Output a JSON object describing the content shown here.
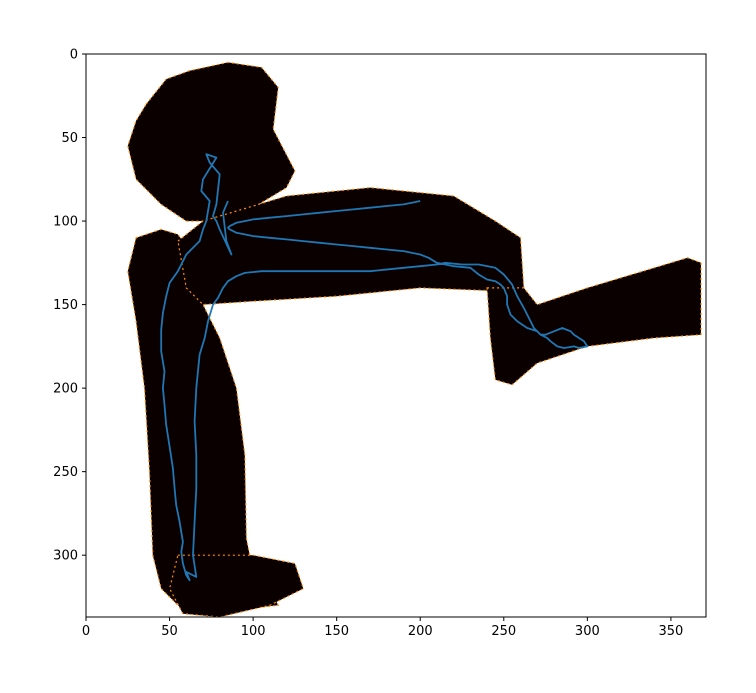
{
  "chart_data": {
    "type": "heatmap",
    "title": "",
    "xlabel": "",
    "ylabel": "",
    "xlim": [
      0,
      371
    ],
    "ylim": [
      337,
      0
    ],
    "y_axis_inverted": true,
    "x_ticks": [
      0,
      50,
      100,
      150,
      200,
      250,
      300,
      350
    ],
    "y_ticks": [
      0,
      50,
      100,
      150,
      200,
      250,
      300
    ],
    "grid": false,
    "legend": "none",
    "colors": {
      "occupied": "#0b0000",
      "edge": "#ff8c00",
      "free": "#ffffff",
      "trajectory": "#1f77b4"
    },
    "map_regions": [
      {
        "name": "top blob",
        "polygon": [
          [
            36,
            30
          ],
          [
            48,
            15
          ],
          [
            62,
            10
          ],
          [
            85,
            5
          ],
          [
            105,
            8
          ],
          [
            115,
            20
          ],
          [
            112,
            45
          ],
          [
            125,
            70
          ],
          [
            120,
            80
          ],
          [
            95,
            95
          ],
          [
            75,
            100
          ],
          [
            60,
            100
          ],
          [
            45,
            90
          ],
          [
            30,
            75
          ],
          [
            25,
            55
          ],
          [
            30,
            40
          ]
        ]
      },
      {
        "name": "left vertical strip",
        "polygon": [
          [
            30,
            110
          ],
          [
            45,
            105
          ],
          [
            55,
            108
          ],
          [
            60,
            115
          ],
          [
            70,
            150
          ],
          [
            80,
            170
          ],
          [
            90,
            200
          ],
          [
            95,
            240
          ],
          [
            96,
            290
          ],
          [
            100,
            310
          ],
          [
            110,
            320
          ],
          [
            115,
            330
          ],
          [
            70,
            335
          ],
          [
            55,
            330
          ],
          [
            45,
            320
          ],
          [
            40,
            300
          ],
          [
            38,
            250
          ],
          [
            35,
            200
          ],
          [
            30,
            160
          ],
          [
            25,
            130
          ]
        ]
      },
      {
        "name": "horizontal corridor",
        "polygon": [
          [
            55,
            112
          ],
          [
            70,
            100
          ],
          [
            120,
            85
          ],
          [
            170,
            80
          ],
          [
            220,
            85
          ],
          [
            245,
            100
          ],
          [
            260,
            110
          ],
          [
            262,
            140
          ],
          [
            250,
            142
          ],
          [
            200,
            140
          ],
          [
            150,
            145
          ],
          [
            100,
            148
          ],
          [
            70,
            150
          ],
          [
            60,
            140
          ]
        ]
      },
      {
        "name": "right corridor",
        "polygon": [
          [
            240,
            140
          ],
          [
            262,
            140
          ],
          [
            270,
            150
          ],
          [
            300,
            140
          ],
          [
            360,
            122
          ],
          [
            368,
            125
          ],
          [
            368,
            168
          ],
          [
            340,
            170
          ],
          [
            300,
            175
          ],
          [
            270,
            185
          ],
          [
            255,
            198
          ],
          [
            245,
            195
          ],
          [
            242,
            170
          ]
        ]
      },
      {
        "name": "bottom foot",
        "polygon": [
          [
            55,
            300
          ],
          [
            100,
            300
          ],
          [
            125,
            305
          ],
          [
            130,
            320
          ],
          [
            110,
            330
          ],
          [
            80,
            337
          ],
          [
            58,
            335
          ],
          [
            50,
            320
          ]
        ]
      }
    ],
    "series": [
      {
        "type": "line",
        "x": [
          85,
          82,
          84,
          87,
          80,
          78,
          76,
          78,
          80,
          74,
          72,
          78,
          70,
          69,
          74,
          72,
          70,
          68,
          65,
          60,
          55,
          50,
          48,
          46,
          45,
          45,
          47,
          46,
          47,
          48,
          50,
          52,
          53,
          54,
          56,
          58,
          57,
          58,
          60,
          62,
          60,
          66,
          64,
          65,
          66,
          66,
          65,
          66,
          68,
          71,
          73,
          76,
          79,
          82,
          85,
          90,
          95,
          105,
          115,
          130,
          150,
          170,
          190,
          200,
          210,
          215,
          225,
          235,
          245,
          250,
          255,
          258,
          262,
          265,
          268,
          272,
          275,
          280,
          285,
          290,
          292,
          295,
          298,
          300,
          295,
          292,
          286,
          282,
          278,
          276,
          272,
          270,
          264,
          258,
          254,
          252,
          252,
          250,
          248,
          245,
          240,
          235,
          230,
          220,
          210,
          205,
          200,
          190,
          180,
          170,
          160,
          150,
          140,
          130,
          120,
          110,
          100,
          95,
          90,
          88,
          86,
          85,
          86,
          88,
          90,
          95,
          100,
          110,
          120,
          130,
          140,
          150,
          160,
          170,
          180,
          190,
          195,
          200
        ],
        "y": [
          88,
          95,
          112,
          120,
          105,
          100,
          97,
          90,
          72,
          65,
          60,
          62,
          75,
          82,
          88,
          100,
          105,
          112,
          115,
          120,
          130,
          137,
          145,
          155,
          165,
          178,
          190,
          200,
          210,
          222,
          235,
          248,
          260,
          270,
          280,
          292,
          298,
          305,
          312,
          315,
          310,
          313,
          300,
          280,
          260,
          240,
          220,
          200,
          180,
          170,
          160,
          150,
          146,
          140,
          136,
          133,
          131,
          130,
          130,
          130,
          130,
          130,
          128,
          127,
          126,
          125,
          126,
          126,
          128,
          132,
          138,
          145,
          152,
          158,
          164,
          168,
          168,
          166,
          164,
          166,
          168,
          170,
          172,
          175,
          176,
          175,
          176,
          175,
          172,
          170,
          168,
          166,
          164,
          160,
          156,
          150,
          145,
          140,
          138,
          136,
          135,
          132,
          128,
          127,
          125,
          122,
          120,
          118,
          117,
          116,
          115,
          114,
          113,
          112,
          111,
          110,
          109,
          108,
          107,
          106,
          105,
          104,
          103,
          102,
          101,
          100,
          99,
          98,
          97,
          96,
          95,
          94,
          93,
          92,
          91,
          90,
          89,
          88
        ]
      }
    ]
  }
}
